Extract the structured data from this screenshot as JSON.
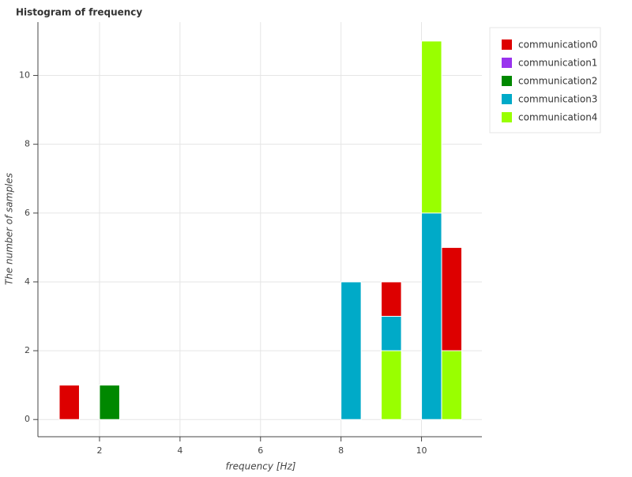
{
  "chart_data": {
    "type": "histogram",
    "title": "Histogram of frequency",
    "x_label": "frequency [Hz]",
    "y_label": "The number of samples",
    "bins": [
      1,
      1.5,
      2,
      2.5,
      3,
      3.5,
      4,
      4.5,
      5,
      5.5,
      6,
      6.5,
      7,
      7.5,
      8,
      8.5,
      9,
      9.5,
      10,
      10.5,
      11
    ],
    "series": [
      {
        "name": "communication0",
        "color": "#dd0000",
        "values": [
          1,
          0,
          0,
          0,
          0,
          0,
          0,
          0,
          0,
          0,
          0,
          0,
          0,
          0,
          0,
          0,
          4,
          0,
          0,
          5
        ]
      },
      {
        "name": "communication1",
        "color": "#9933ee",
        "values": [
          0,
          0,
          0,
          0,
          0,
          0,
          0,
          0,
          0,
          0,
          0,
          0,
          0,
          0,
          0,
          0,
          0,
          0,
          0,
          0
        ]
      },
      {
        "name": "communication2",
        "color": "#008800",
        "values": [
          0,
          0,
          1,
          0,
          0,
          0,
          0,
          0,
          0,
          0,
          0,
          0,
          0,
          0,
          0,
          0,
          0,
          0,
          0,
          0
        ]
      },
      {
        "name": "communication3",
        "color": "#00aac8",
        "values": [
          0,
          0,
          0,
          0,
          0,
          0,
          0,
          0,
          0,
          0,
          0,
          0,
          0,
          0,
          4,
          0,
          3,
          0,
          6,
          0
        ]
      },
      {
        "name": "communication4",
        "color": "#99ff00",
        "values": [
          0,
          0,
          0,
          0,
          0,
          0,
          0,
          0,
          0,
          0,
          0,
          0,
          0,
          0,
          0,
          0,
          2,
          0,
          11,
          2
        ]
      }
    ],
    "xlim": [
      0.47,
      11.5
    ],
    "xticks": [
      2,
      4,
      6,
      8,
      10
    ],
    "ylim": [
      -0.5,
      11.55
    ],
    "yticks": [
      0,
      2,
      4,
      6,
      8,
      10
    ],
    "grid": true,
    "legend_position": "right"
  }
}
